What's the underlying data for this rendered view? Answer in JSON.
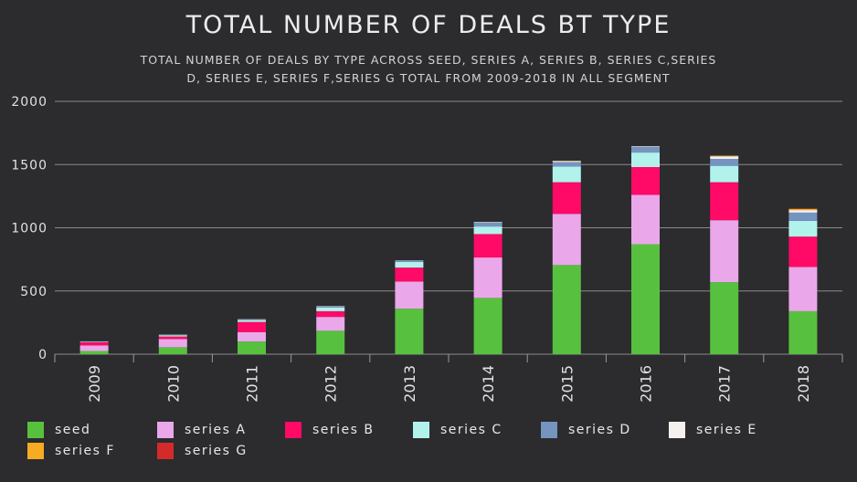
{
  "chart_data": {
    "type": "bar",
    "stacked": true,
    "title": "TOTAL NUMBER OF DEALS BT TYPE",
    "subtitle_lines": [
      "TOTAL NUMBER OF DEALS BY TYPE ACROSS SEED, SERIES A, SERIES B, SERIES C,SERIES",
      "D, SERIES E, SERIES F,SERIES G TOTAL FROM 2009-2018 IN ALL SEGMENT"
    ],
    "xlabel": "",
    "ylabel": "",
    "ylim": [
      0,
      2000
    ],
    "yticks": [
      0,
      500,
      1000,
      1500,
      2000
    ],
    "grid": true,
    "legend_position": "bottom",
    "categories": [
      "2009",
      "2010",
      "2011",
      "2012",
      "2013",
      "2014",
      "2015",
      "2016",
      "2017",
      "2018"
    ],
    "series": [
      {
        "name": "seed",
        "color": "#57c13f",
        "values": [
          25,
          55,
          100,
          185,
          360,
          445,
          705,
          870,
          570,
          340
        ]
      },
      {
        "name": "series A",
        "color": "#eaa7ea",
        "values": [
          45,
          65,
          75,
          110,
          215,
          320,
          405,
          390,
          490,
          350
        ]
      },
      {
        "name": "series B",
        "color": "#ff0a66",
        "values": [
          25,
          20,
          80,
          45,
          110,
          185,
          250,
          220,
          300,
          240
        ]
      },
      {
        "name": "series C",
        "color": "#b1f2ec",
        "values": [
          5,
          10,
          15,
          30,
          45,
          60,
          125,
          115,
          130,
          125
        ]
      },
      {
        "name": "series D",
        "color": "#7594c0",
        "values": [
          2,
          3,
          5,
          10,
          10,
          30,
          35,
          45,
          55,
          65
        ]
      },
      {
        "name": "series E",
        "color": "#f5f2ee",
        "values": [
          0,
          2,
          2,
          2,
          2,
          5,
          8,
          5,
          20,
          20
        ]
      },
      {
        "name": "series F",
        "color": "#f7ab22",
        "values": [
          0,
          0,
          0,
          0,
          0,
          0,
          2,
          0,
          5,
          10
        ]
      },
      {
        "name": "series G",
        "color": "#d42a2a",
        "values": [
          0,
          0,
          0,
          0,
          0,
          0,
          0,
          0,
          0,
          2
        ]
      }
    ]
  }
}
